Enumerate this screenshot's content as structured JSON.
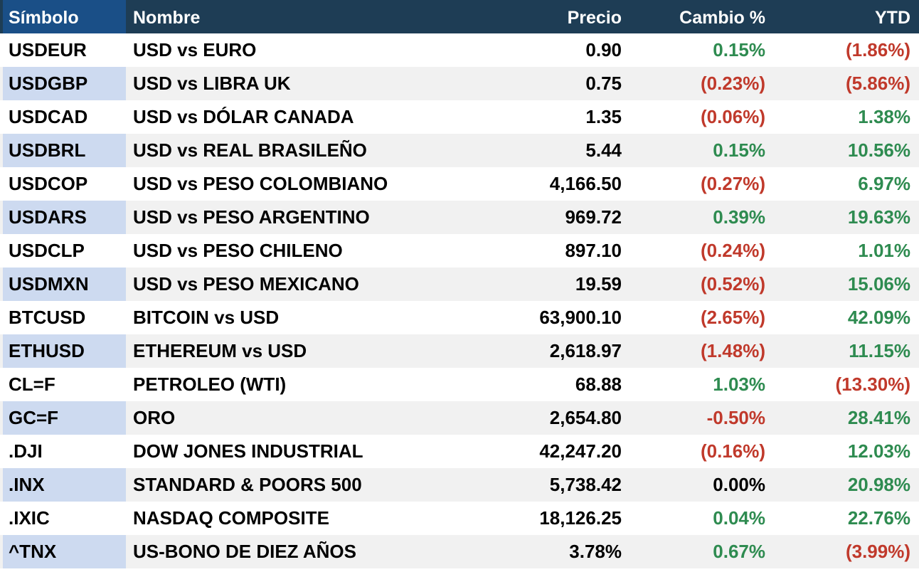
{
  "colors": {
    "header_bg": "#1e3d55",
    "symbol_header_bg": "#1a4f87",
    "alt_row_bg": "#f1f1f1",
    "alt_symbol_bg": "#cddaf0",
    "positive": "#2e8b50",
    "negative": "#c0392b"
  },
  "header": {
    "symbol": "Símbolo",
    "name": "Nombre",
    "price": "Precio",
    "change": "Cambio %",
    "ytd": "YTD"
  },
  "rows": [
    {
      "symbol": "USDEUR",
      "name": "USD vs EURO",
      "price": "0.90",
      "change": "0.15%",
      "change_dir": "pos",
      "ytd": "(1.86%)",
      "ytd_dir": "neg"
    },
    {
      "symbol": "USDGBP",
      "name": "USD vs LIBRA UK",
      "price": "0.75",
      "change": "(0.23%)",
      "change_dir": "neg",
      "ytd": "(5.86%)",
      "ytd_dir": "neg"
    },
    {
      "symbol": "USDCAD",
      "name": "USD vs DÓLAR CANADA",
      "price": "1.35",
      "change": "(0.06%)",
      "change_dir": "neg",
      "ytd": "1.38%",
      "ytd_dir": "pos"
    },
    {
      "symbol": "USDBRL",
      "name": "USD vs REAL BRASILEÑO",
      "price": "5.44",
      "change": "0.15%",
      "change_dir": "pos",
      "ytd": "10.56%",
      "ytd_dir": "pos"
    },
    {
      "symbol": "USDCOP",
      "name": "USD vs PESO COLOMBIANO",
      "price": "4,166.50",
      "change": "(0.27%)",
      "change_dir": "neg",
      "ytd": "6.97%",
      "ytd_dir": "pos"
    },
    {
      "symbol": "USDARS",
      "name": "USD vs PESO ARGENTINO",
      "price": "969.72",
      "change": "0.39%",
      "change_dir": "pos",
      "ytd": "19.63%",
      "ytd_dir": "pos"
    },
    {
      "symbol": "USDCLP",
      "name": "USD vs PESO CHILENO",
      "price": "897.10",
      "change": "(0.24%)",
      "change_dir": "neg",
      "ytd": "1.01%",
      "ytd_dir": "pos"
    },
    {
      "symbol": "USDMXN",
      "name": "USD vs PESO MEXICANO",
      "price": "19.59",
      "change": "(0.52%)",
      "change_dir": "neg",
      "ytd": "15.06%",
      "ytd_dir": "pos"
    },
    {
      "symbol": "BTCUSD",
      "name": "BITCOIN vs USD",
      "price": "63,900.10",
      "change": "(2.65%)",
      "change_dir": "neg",
      "ytd": "42.09%",
      "ytd_dir": "pos"
    },
    {
      "symbol": "ETHUSD",
      "name": "ETHEREUM vs USD",
      "price": "2,618.97",
      "change": "(1.48%)",
      "change_dir": "neg",
      "ytd": "11.15%",
      "ytd_dir": "pos"
    },
    {
      "symbol": "CL=F",
      "name": "PETROLEO (WTI)",
      "price": "68.88",
      "change": "1.03%",
      "change_dir": "pos",
      "ytd": "(13.30%)",
      "ytd_dir": "neg"
    },
    {
      "symbol": "GC=F",
      "name": "ORO",
      "price": "2,654.80",
      "change": "-0.50%",
      "change_dir": "neg",
      "ytd": "28.41%",
      "ytd_dir": "pos"
    },
    {
      "symbol": ".DJI",
      "name": "DOW JONES INDUSTRIAL",
      "price": "42,247.20",
      "change": "(0.16%)",
      "change_dir": "neg",
      "ytd": "12.03%",
      "ytd_dir": "pos"
    },
    {
      "symbol": ".INX",
      "name": "STANDARD & POORS 500",
      "price": "5,738.42",
      "change": "0.00%",
      "change_dir": "neu",
      "ytd": "20.98%",
      "ytd_dir": "pos"
    },
    {
      "symbol": ".IXIC",
      "name": "NASDAQ COMPOSITE",
      "price": "18,126.25",
      "change": "0.04%",
      "change_dir": "pos",
      "ytd": "22.76%",
      "ytd_dir": "pos"
    },
    {
      "symbol": "^TNX",
      "name": "US-BONO DE DIEZ AÑOS",
      "price": "3.78%",
      "change": "0.67%",
      "change_dir": "pos",
      "ytd": "(3.99%)",
      "ytd_dir": "neg"
    }
  ]
}
